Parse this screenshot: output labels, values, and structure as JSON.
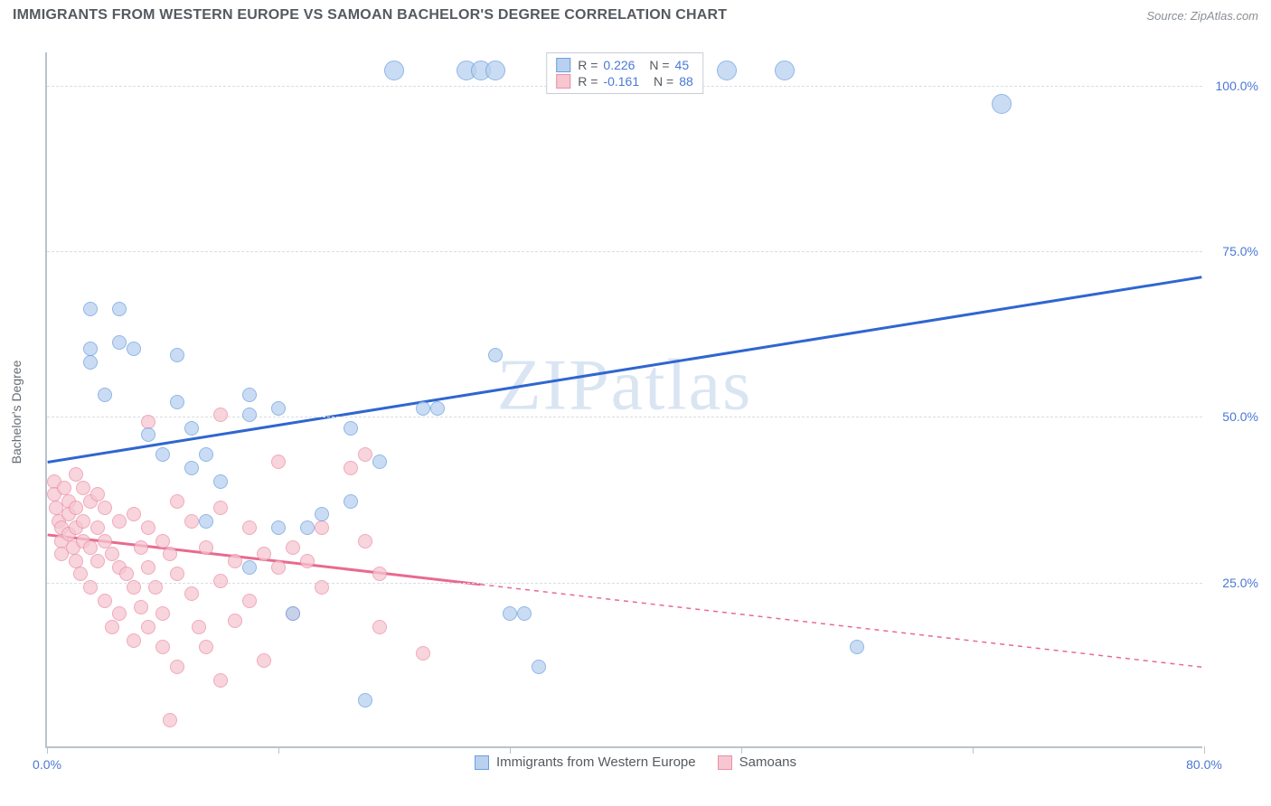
{
  "title": "IMMIGRANTS FROM WESTERN EUROPE VS SAMOAN BACHELOR'S DEGREE CORRELATION CHART",
  "source": "Source: ZipAtlas.com",
  "watermark": "ZIPatlas",
  "chart": {
    "type": "scatter",
    "y_label": "Bachelor's Degree",
    "xlim": [
      0,
      80
    ],
    "ylim": [
      0,
      105
    ],
    "x_ticks": [
      0,
      16,
      32,
      48,
      64,
      80
    ],
    "x_tick_labels_shown": {
      "0": "0.0%",
      "80": "80.0%"
    },
    "y_gridlines": [
      25,
      50,
      75,
      100
    ],
    "y_tick_labels": {
      "25": "25.0%",
      "50": "50.0%",
      "75": "75.0%",
      "100": "100.0%"
    },
    "background_color": "#ffffff",
    "grid_color": "#d9dde2",
    "axis_color": "#b9c2cc",
    "tick_label_color": "#4a78d6",
    "marker_radius": 8,
    "marker_radius_large": 11,
    "series": {
      "blue": {
        "label": "Immigrants from Western Europe",
        "fill": "#b9d1ef",
        "stroke": "#6a9fe0",
        "line_color": "#2f66d0",
        "R": "0.226",
        "N": "45",
        "trend": {
          "x1": 0,
          "y1": 43,
          "x2": 80,
          "y2": 71,
          "solid_until_x": 80
        },
        "points": [
          [
            3,
            66
          ],
          [
            5,
            66
          ],
          [
            3,
            60
          ],
          [
            5,
            61
          ],
          [
            6,
            60
          ],
          [
            3,
            58
          ],
          [
            4,
            53
          ],
          [
            9,
            59
          ],
          [
            9,
            52
          ],
          [
            7,
            47
          ],
          [
            8,
            44
          ],
          [
            10,
            48
          ],
          [
            11,
            44
          ],
          [
            14,
            53
          ],
          [
            14,
            50
          ],
          [
            16,
            51
          ],
          [
            12,
            40
          ],
          [
            10,
            42
          ],
          [
            11,
            34
          ],
          [
            16,
            33
          ],
          [
            18,
            33
          ],
          [
            14,
            27
          ],
          [
            17,
            20
          ],
          [
            19,
            35
          ],
          [
            21,
            37
          ],
          [
            21,
            48
          ],
          [
            23,
            43
          ],
          [
            22,
            7
          ],
          [
            26,
            51
          ],
          [
            27,
            51
          ],
          [
            32,
            20
          ],
          [
            33,
            20
          ],
          [
            31,
            59
          ],
          [
            24,
            102
          ],
          [
            29,
            102
          ],
          [
            30,
            102
          ],
          [
            31,
            102
          ],
          [
            47,
            102
          ],
          [
            51,
            102
          ],
          [
            56,
            15
          ],
          [
            66,
            97
          ],
          [
            34,
            12
          ]
        ]
      },
      "pink": {
        "label": "Samoans",
        "fill": "#f6c6d1",
        "stroke": "#ea8fa6",
        "line_color": "#e86a8f",
        "R": "-0.161",
        "N": "88",
        "trend": {
          "x1": 0,
          "y1": 32,
          "x2": 80,
          "y2": 12,
          "solid_until_x": 30
        },
        "points": [
          [
            0.5,
            40
          ],
          [
            0.5,
            38
          ],
          [
            0.6,
            36
          ],
          [
            0.8,
            34
          ],
          [
            1,
            33
          ],
          [
            1,
            31
          ],
          [
            1,
            29
          ],
          [
            1.2,
            39
          ],
          [
            1.5,
            37
          ],
          [
            1.5,
            35
          ],
          [
            1.5,
            32
          ],
          [
            1.8,
            30
          ],
          [
            2,
            41
          ],
          [
            2,
            36
          ],
          [
            2,
            33
          ],
          [
            2,
            28
          ],
          [
            2.3,
            26
          ],
          [
            2.5,
            39
          ],
          [
            2.5,
            34
          ],
          [
            2.5,
            31
          ],
          [
            3,
            37
          ],
          [
            3,
            30
          ],
          [
            3,
            24
          ],
          [
            3.5,
            38
          ],
          [
            3.5,
            33
          ],
          [
            3.5,
            28
          ],
          [
            4,
            36
          ],
          [
            4,
            31
          ],
          [
            4,
            22
          ],
          [
            4.5,
            29
          ],
          [
            4.5,
            18
          ],
          [
            5,
            34
          ],
          [
            5,
            27
          ],
          [
            5,
            20
          ],
          [
            5.5,
            26
          ],
          [
            6,
            35
          ],
          [
            6,
            24
          ],
          [
            6,
            16
          ],
          [
            6.5,
            30
          ],
          [
            6.5,
            21
          ],
          [
            7,
            33
          ],
          [
            7,
            27
          ],
          [
            7,
            18
          ],
          [
            7.5,
            24
          ],
          [
            8,
            31
          ],
          [
            8,
            20
          ],
          [
            8,
            15
          ],
          [
            8.5,
            29
          ],
          [
            8.5,
            4
          ],
          [
            9,
            37
          ],
          [
            9,
            26
          ],
          [
            9,
            12
          ],
          [
            10,
            34
          ],
          [
            10,
            23
          ],
          [
            10.5,
            18
          ],
          [
            11,
            30
          ],
          [
            11,
            15
          ],
          [
            12,
            50
          ],
          [
            12,
            36
          ],
          [
            12,
            25
          ],
          [
            12,
            10
          ],
          [
            13,
            28
          ],
          [
            13,
            19
          ],
          [
            14,
            33
          ],
          [
            14,
            22
          ],
          [
            15,
            29
          ],
          [
            15,
            13
          ],
          [
            16,
            27
          ],
          [
            16,
            43
          ],
          [
            17,
            30
          ],
          [
            17,
            20
          ],
          [
            18,
            28
          ],
          [
            19,
            33
          ],
          [
            19,
            24
          ],
          [
            21,
            42
          ],
          [
            22,
            31
          ],
          [
            22,
            44
          ],
          [
            23,
            26
          ],
          [
            23,
            18
          ],
          [
            26,
            14
          ],
          [
            7,
            49
          ]
        ]
      }
    }
  },
  "top_legend": {
    "rows": [
      {
        "swatch_fill": "#b9d1ef",
        "swatch_stroke": "#6a9fe0",
        "r_label": "R =",
        "r_val": "0.226",
        "n_label": "N =",
        "n_val": "45"
      },
      {
        "swatch_fill": "#f6c6d1",
        "swatch_stroke": "#ea8fa6",
        "r_label": "R =",
        "r_val": "-0.161",
        "n_label": "N =",
        "n_val": "88"
      }
    ]
  }
}
